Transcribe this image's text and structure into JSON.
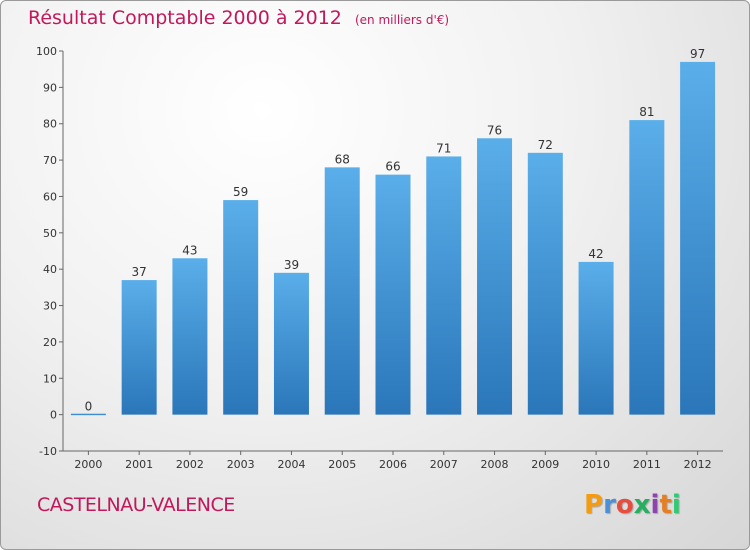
{
  "header": {
    "title": "Résultat Comptable 2000 à 2012",
    "unit": "(en milliers d'€)"
  },
  "commune": "CASTELNAU-VALENCE",
  "logo": {
    "letters": [
      "P",
      "r",
      "o",
      "x",
      "i",
      "t",
      "i"
    ],
    "colors": [
      "#f39c12",
      "#4a90d9",
      "#e74c3c",
      "#27ae60",
      "#8e44ad",
      "#e67e22",
      "#2ecc71"
    ]
  },
  "chart_data": {
    "type": "bar",
    "title": "Résultat Comptable 2000 à 2012",
    "ylabel": "en milliers d'€",
    "xlabel": "",
    "categories": [
      "2000",
      "2001",
      "2002",
      "2003",
      "2004",
      "2005",
      "2006",
      "2007",
      "2008",
      "2009",
      "2010",
      "2011",
      "2012"
    ],
    "values": [
      0,
      37,
      43,
      59,
      39,
      68,
      66,
      71,
      76,
      72,
      42,
      81,
      97
    ],
    "ylim": [
      -10,
      100
    ],
    "yticks": [
      -10,
      0,
      10,
      20,
      30,
      40,
      50,
      60,
      70,
      80,
      90,
      100
    ],
    "grid": false,
    "bar_color": "#3a8fd4"
  }
}
